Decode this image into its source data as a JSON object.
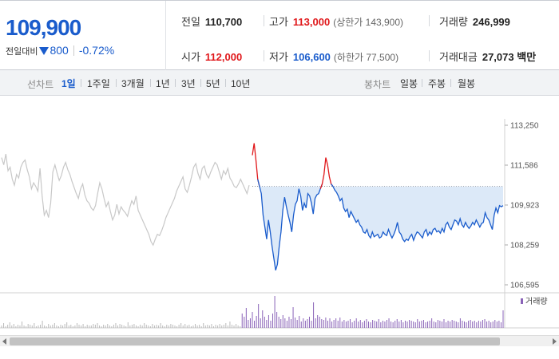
{
  "quote": {
    "price": "109,900",
    "change_label": "전일대비",
    "change_amount": "800",
    "change_rate": "-0.72%",
    "change_direction": "down",
    "stats": {
      "prev_close_label": "전일",
      "prev_close": "110,700",
      "high_label": "고가",
      "high": "113,000",
      "upper_limit": "(상한가 143,900)",
      "volume_label": "거래량",
      "volume": "246,999",
      "open_label": "시가",
      "open": "112,000",
      "low_label": "저가",
      "low": "106,600",
      "lower_limit": "(하한가 77,500)",
      "amount_label": "거래대금",
      "amount": "27,073",
      "amount_unit": "백만"
    }
  },
  "tabs": {
    "line_label": "선차트",
    "line_tabs": [
      "1일",
      "1주일",
      "3개월",
      "1년",
      "3년",
      "5년",
      "10년"
    ],
    "active_line_tab": 0,
    "candle_label": "봉차트",
    "candle_tabs": [
      "일봉",
      "주봉",
      "월봉"
    ]
  },
  "colors": {
    "up": "#e0171a",
    "down": "#1a5ccc",
    "prev_day_line": "#c8c8c8",
    "fill": "#dce9f8",
    "volume": "#8a63b8"
  },
  "chart_data": {
    "type": "line",
    "y_ticks": [
      "113,250",
      "111,586",
      "109,923",
      "108,259",
      "106,595"
    ],
    "ylim": [
      106595,
      113250
    ],
    "reference_price": 110700,
    "volume_legend": "거래량",
    "series": [
      {
        "values": [
          111900,
          111600,
          112050,
          111350,
          111500,
          111000,
          110750,
          111200,
          111050,
          111500,
          111700,
          111800,
          111400,
          111100,
          110600,
          110850,
          110700,
          110500,
          111450,
          110300,
          109500,
          109700,
          109400,
          110000,
          111300,
          111600,
          111250,
          110950,
          111150,
          111500,
          111700,
          111400,
          111200,
          110900,
          110650,
          110400,
          110200,
          110600,
          110800,
          110350,
          110100,
          110000,
          109800,
          109700,
          109900,
          110400,
          110850,
          110600,
          110200,
          109850,
          110050,
          109650,
          109300,
          109500,
          109950,
          109550,
          109850,
          109700,
          109600,
          109450,
          109800,
          110100,
          109950,
          110300,
          109700,
          109500,
          109300,
          109100,
          108900,
          108700,
          108400,
          108250,
          108500,
          108700,
          108650,
          108850,
          109100,
          109400,
          109600,
          109800,
          110000,
          110200,
          110500,
          110700,
          110900,
          111100,
          110600,
          110450,
          110750,
          111100,
          111500,
          111650,
          111250,
          111000,
          111450,
          111550,
          111200,
          111050,
          111300,
          111500,
          111700,
          111600,
          111300,
          111000,
          111350,
          111200,
          111450,
          111050,
          110900,
          110700,
          110650,
          110800,
          111000,
          110800,
          110600,
          110400,
          110750
        ]
      },
      {
        "values": [
          112000,
          112500,
          111800,
          111000,
          110700,
          110400,
          109500,
          109000,
          108500,
          109300,
          108800,
          108200,
          107700,
          107200,
          107450,
          108200,
          108800,
          109700,
          110250,
          109850,
          109500,
          109200,
          108800,
          109500,
          109950,
          110100,
          110600,
          110300,
          109700,
          110000,
          109800,
          110400,
          110300,
          110000,
          109550,
          110200,
          110350,
          110400,
          110600,
          110800,
          111200,
          111900,
          111600,
          111100,
          110800,
          110700,
          110550,
          110450,
          110300,
          110100,
          110200,
          109800,
          109650,
          109750,
          109400,
          109650,
          109500,
          109350,
          109200,
          109300,
          109100,
          109000,
          108800,
          108750,
          108900,
          108650,
          108550,
          108800,
          108600,
          108650,
          108700,
          108550,
          108600,
          108800,
          108700,
          108650,
          108900,
          108700,
          108550,
          108700,
          108900,
          109200,
          108800,
          108700,
          108500,
          108400,
          108500,
          108450,
          108600,
          108700,
          108450,
          108650,
          108800,
          108750,
          108650,
          108550,
          108800,
          108900,
          108650,
          108800,
          108700,
          108900,
          108950,
          108800,
          108850,
          108750,
          108950,
          108800,
          109100,
          109200,
          109000,
          108900,
          109100,
          109300,
          109250,
          109100,
          109350,
          109100,
          109000,
          109200,
          109050,
          108950,
          109050,
          109200,
          109100,
          109300,
          109150,
          109000,
          109150,
          109200,
          109600,
          109400,
          109300,
          109100,
          108900,
          109500,
          109800,
          109600,
          109900,
          109850,
          109900
        ]
      }
    ],
    "volume": [
      3,
      6,
      2,
      4,
      7,
      3,
      5,
      2,
      4,
      3,
      8,
      3,
      2,
      5,
      4,
      3,
      6,
      2,
      3,
      4,
      9,
      3,
      2,
      5,
      3,
      4,
      6,
      3,
      2,
      4,
      3,
      5,
      7,
      3,
      4,
      2,
      3,
      6,
      4,
      3,
      5,
      2,
      4,
      3,
      3,
      5,
      4,
      6,
      3,
      2,
      4,
      3,
      5,
      3,
      2,
      4,
      6,
      3,
      5,
      4,
      3,
      2,
      7,
      3,
      4,
      5,
      3,
      2,
      4,
      3,
      6,
      4,
      3,
      2,
      5,
      3,
      4,
      3,
      6,
      3,
      2,
      4,
      3,
      5,
      4,
      3,
      2,
      4,
      6,
      3,
      5,
      3,
      4,
      2,
      3,
      5,
      3,
      4,
      2,
      6,
      3,
      4,
      3,
      5,
      2,
      4,
      3,
      5,
      3,
      4,
      6,
      3,
      8,
      4,
      3,
      5,
      3,
      2,
      18,
      14,
      25,
      10,
      12,
      20,
      9,
      15,
      30,
      12,
      22,
      14,
      10,
      16,
      9,
      18,
      40,
      20,
      14,
      11,
      16,
      12,
      9,
      14,
      11,
      26,
      13,
      10,
      15,
      8,
      12,
      9,
      11,
      14,
      9,
      32,
      12,
      16,
      14,
      11,
      10,
      13,
      9,
      12,
      8,
      10,
      12,
      9,
      13,
      8,
      10,
      8,
      9,
      11,
      7,
      9,
      12,
      8,
      10,
      7,
      9,
      11,
      8,
      7,
      10,
      9,
      8,
      11,
      7,
      9,
      8,
      10,
      12,
      8,
      7,
      9,
      11,
      8,
      10,
      7,
      9,
      8,
      10,
      9,
      8,
      7,
      11,
      8,
      9,
      10,
      7,
      8,
      9,
      12,
      8,
      7,
      10,
      9,
      8,
      11,
      7,
      9,
      8,
      10,
      9,
      8,
      7,
      12,
      9,
      8,
      7,
      9,
      10,
      8,
      9,
      7,
      9,
      8,
      10,
      11,
      8,
      9,
      7,
      8,
      10,
      8,
      9,
      7,
      22
    ]
  }
}
